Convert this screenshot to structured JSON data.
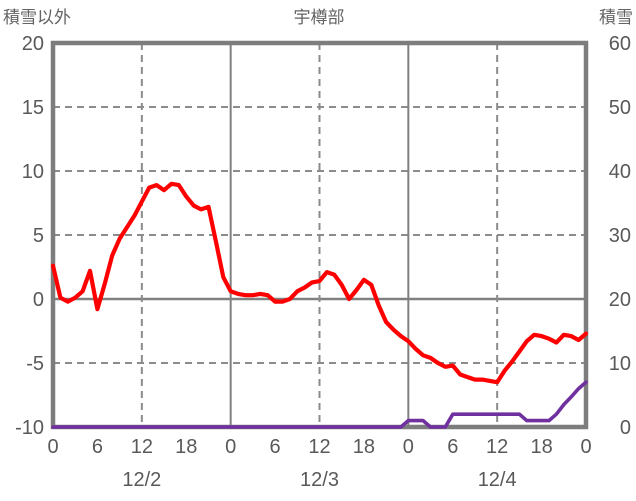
{
  "page": {
    "left_axis_title": "積雪以外",
    "title": "宇樽部",
    "right_axis_title": "積雪"
  },
  "chart_data": {
    "type": "line",
    "title": "宇樽部",
    "grid": "on",
    "legend": "none",
    "x": {
      "unit": "hour",
      "span_hours": 72,
      "hour_label_step": 6,
      "hour_labels": [
        "0",
        "6",
        "12",
        "18",
        "0",
        "6",
        "12",
        "18",
        "0",
        "6",
        "12",
        "18",
        "0"
      ],
      "date_labels": [
        {
          "label": "12/2",
          "center_hour": 12
        },
        {
          "label": "12/3",
          "center_hour": 36
        },
        {
          "label": "12/4",
          "center_hour": 60
        }
      ],
      "gridlines": {
        "dashed_hours": [
          12,
          36,
          60
        ],
        "solid_hours": [
          24,
          48
        ]
      }
    },
    "left_axis": {
      "label": "積雪以外",
      "min": -10,
      "max": 20,
      "ticks": [
        20,
        15,
        10,
        5,
        0,
        -5,
        -10
      ],
      "dashed_gridlines": [
        15,
        10,
        5,
        -5
      ],
      "solid_gridlines": [
        0
      ]
    },
    "right_axis": {
      "label": "積雪",
      "min": 0,
      "max": 60,
      "ticks": [
        60,
        50,
        40,
        30,
        20,
        10,
        0
      ]
    },
    "series": [
      {
        "name": "積雪",
        "axis": "right",
        "color": "#7030a0",
        "stroke_width": 3.6,
        "values": [
          0,
          0,
          0,
          0,
          0,
          0,
          0,
          0,
          0,
          0,
          0,
          0,
          0,
          0,
          0,
          0,
          0,
          0,
          0,
          0,
          0,
          0,
          0,
          0,
          0,
          0,
          0,
          0,
          0,
          0,
          0,
          0,
          0,
          0,
          0,
          0,
          0,
          0,
          0,
          0,
          0,
          0,
          0,
          0,
          0,
          0,
          0,
          0,
          1,
          1,
          1,
          0,
          0,
          0,
          2,
          2,
          2,
          2,
          2,
          2,
          2,
          2,
          2,
          2,
          1,
          1,
          1,
          1,
          2,
          3.5,
          4.7,
          6,
          7
        ]
      },
      {
        "name": "積雪以外",
        "axis": "left",
        "color": "#ff0000",
        "stroke_width": 4.2,
        "values": [
          2.6,
          0.1,
          -0.2,
          0.1,
          0.6,
          2.2,
          -0.8,
          1.2,
          3.4,
          4.7,
          5.6,
          6.5,
          7.6,
          8.7,
          8.9,
          8.5,
          9.0,
          8.9,
          8.0,
          7.3,
          7.0,
          7.2,
          4.5,
          1.7,
          0.6,
          0.4,
          0.3,
          0.3,
          0.4,
          0.3,
          -0.2,
          -0.2,
          0.0,
          0.6,
          0.9,
          1.3,
          1.4,
          2.1,
          1.9,
          1.1,
          0.0,
          0.7,
          1.5,
          1.1,
          -0.5,
          -1.8,
          -2.4,
          -2.9,
          -3.3,
          -3.9,
          -4.4,
          -4.6,
          -5.0,
          -5.3,
          -5.2,
          -5.9,
          -6.1,
          -6.3,
          -6.3,
          -6.4,
          -6.5,
          -5.6,
          -4.9,
          -4.1,
          -3.3,
          -2.8,
          -2.9,
          -3.1,
          -3.4,
          -2.8,
          -2.9,
          -3.2,
          -2.7
        ]
      }
    ],
    "style": {
      "border_color": "#7d7d7d",
      "gridline_color": "#8b8b8b",
      "zero_line_color": "#808080",
      "label_color": "#595959",
      "background": "#ffffff"
    }
  }
}
